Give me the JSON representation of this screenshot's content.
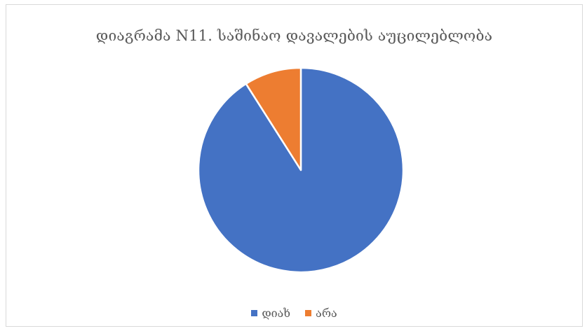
{
  "chart_data": {
    "type": "pie",
    "title": "დიაგრამა N11. საშინაო დავალების აუცილებლობა",
    "categories": [
      "დიახ",
      "არა"
    ],
    "values": [
      91,
      9
    ],
    "colors": [
      "#4472c4",
      "#ed7d31"
    ],
    "legend_position": "bottom"
  }
}
